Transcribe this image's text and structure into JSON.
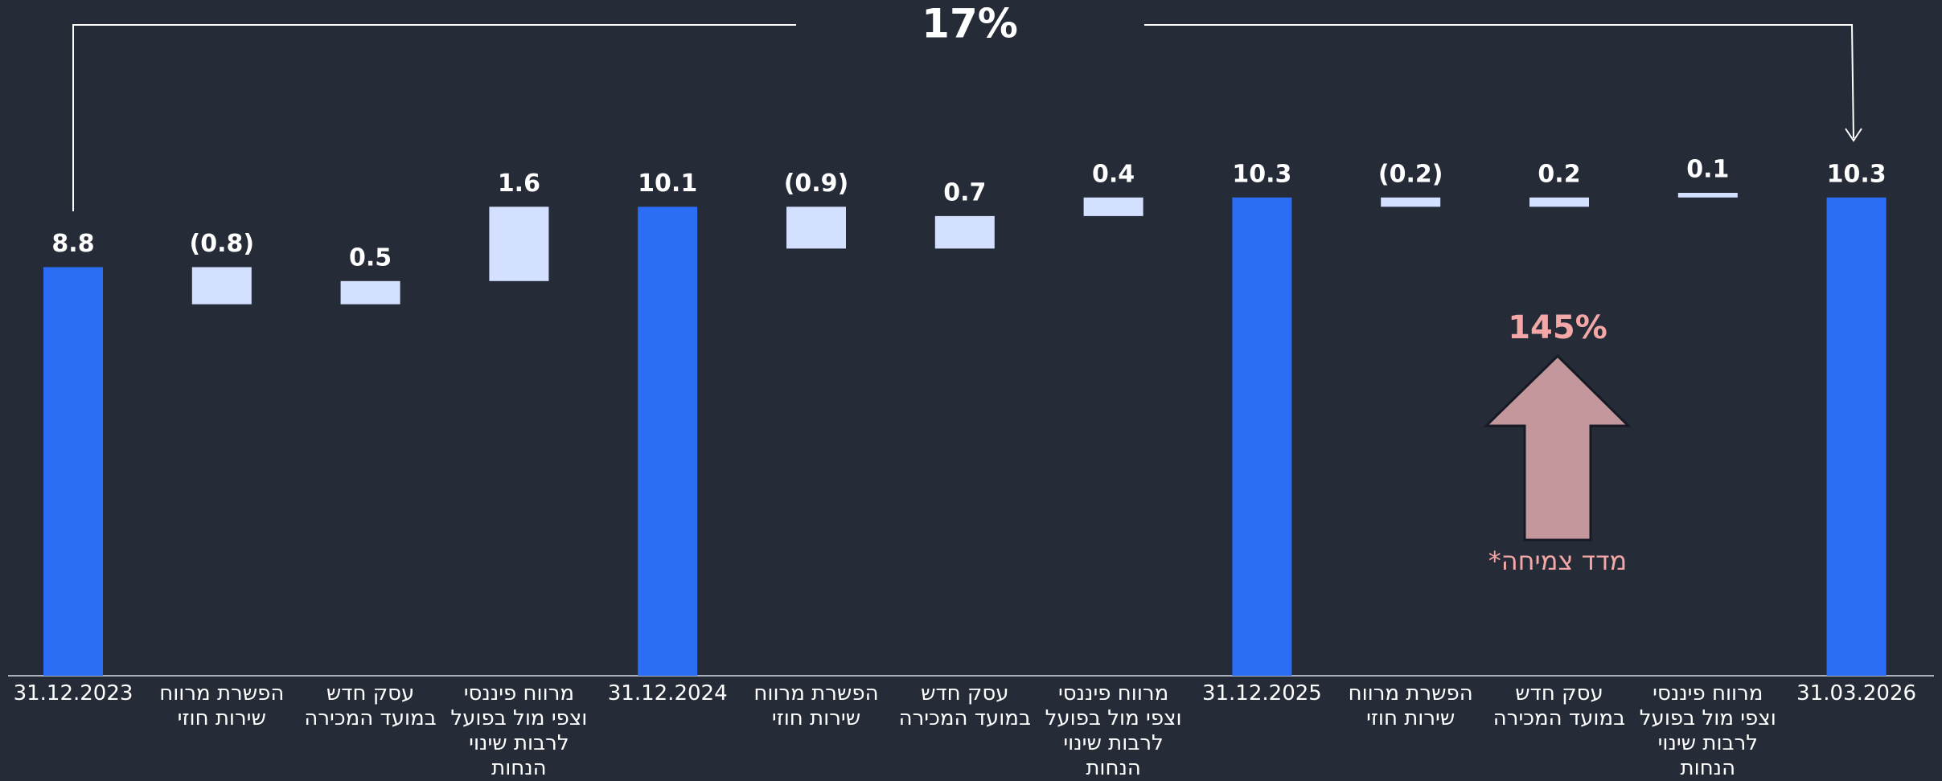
{
  "chart_data": {
    "type": "waterfall",
    "categories": [
      "31.12.2023",
      "הפשרת מרווח שירות חוזי",
      "עסק חדש במועד המכירה",
      "מרווח פיננסי וצפי מול בפועל לרבות שינוי הנחות",
      "31.12.2024",
      "הפשרת מרווח שירות חוזי",
      "עסק חדש במועד המכירה",
      "מרווח פיננסי וצפי מול בפועל לרבות שינוי הנחות",
      "31.12.2025",
      "הפשרת מרווח שירות חוזי",
      "עסק חדש במועד המכירה",
      "מרווח פיננסי וצפי מול בפועל לרבות שינוי הנחות",
      "31.03.2026"
    ],
    "values": [
      8.8,
      -0.8,
      0.5,
      1.6,
      10.1,
      -0.9,
      0.7,
      0.4,
      10.3,
      -0.2,
      0.2,
      0.1,
      10.3
    ],
    "value_labels": [
      "8.8",
      "(0.8)",
      "0.5",
      "1.6",
      "10.1",
      "(0.9)",
      "0.7",
      "0.4",
      "10.3",
      "(0.2)",
      "0.2",
      "0.1",
      "10.3"
    ],
    "is_total": [
      true,
      false,
      false,
      false,
      true,
      false,
      false,
      false,
      true,
      false,
      false,
      false,
      true
    ],
    "total_color": "#2b6ef5",
    "delta_color": "#d3e0ff",
    "annotations": {
      "overall_growth": "17%",
      "growth_index_value": "145%",
      "growth_index_label": "מדד צמיחה*"
    }
  }
}
